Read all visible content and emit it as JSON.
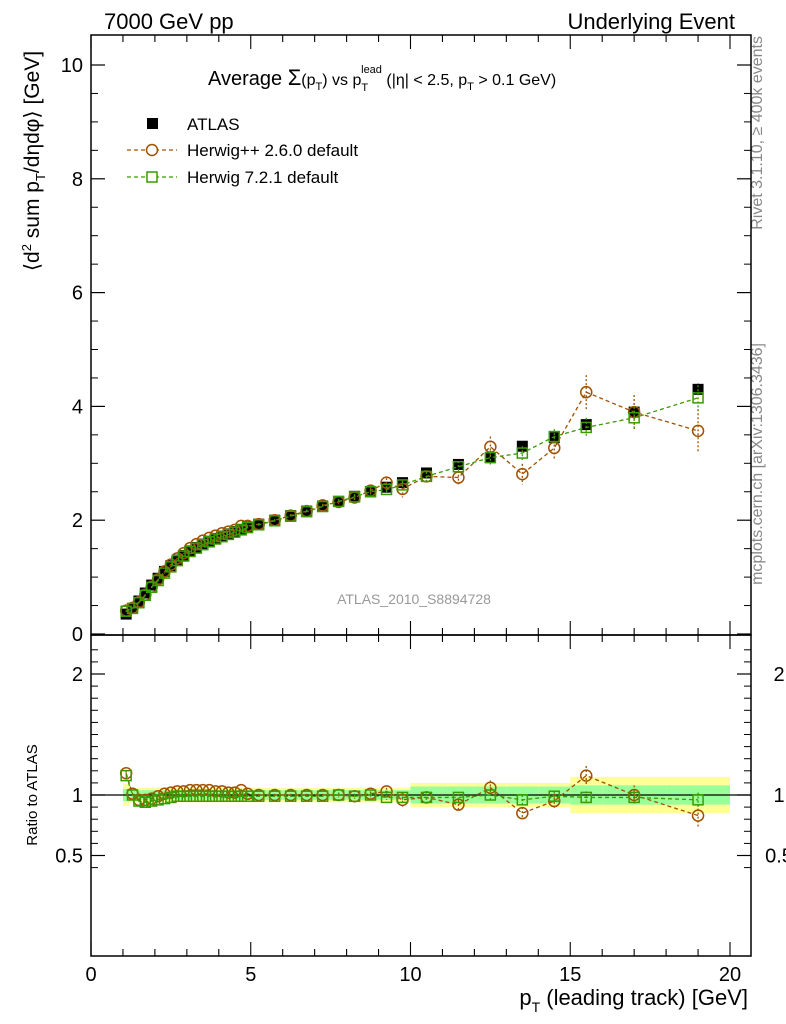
{
  "header": {
    "left": "7000 GeV pp",
    "right": "Underlying Event"
  },
  "side_labels": {
    "rivet": "Rivet 3.1.10, ≥ 400k events",
    "mcplots": "mcplots.cern.ch [arXiv:1306.3436]"
  },
  "chart_data": [
    {
      "type": "scatter",
      "panel": "main",
      "title": {
        "prefix": "Average ",
        "sigma": "Σ",
        "sigma_arg_open": "(p",
        "sigma_arg_sub": "T",
        "sigma_arg_close": ")",
        "vs": " vs p",
        "vs_sub": "T",
        "vs_sup": "lead",
        "cuts_1": " (|η| < 2.5, p",
        "cuts_sub": "T",
        "cuts_2": " > 0.1 GeV)"
      },
      "ylabel": {
        "p1": "⟨d",
        "sup2": "2",
        "p2": " sum p",
        "subT": "T",
        "p3": "/dηdφ⟩ [GeV]"
      },
      "watermark": "ATLAS_2010_S8894728",
      "xlim": [
        0,
        20
      ],
      "ylim": [
        0,
        10.5
      ],
      "yticks": [
        0,
        2,
        4,
        6,
        8,
        10
      ],
      "legend_position": "top-left",
      "series": [
        {
          "name": "ATLAS",
          "color": "#000000",
          "marker": "filled-square",
          "x": [
            1.1,
            1.3,
            1.5,
            1.7,
            1.9,
            2.1,
            2.3,
            2.5,
            2.7,
            2.9,
            3.1,
            3.3,
            3.5,
            3.7,
            3.9,
            4.1,
            4.3,
            4.5,
            4.7,
            4.9,
            5.25,
            5.75,
            6.25,
            6.75,
            7.25,
            7.75,
            8.25,
            8.75,
            9.25,
            9.75,
            10.5,
            11.5,
            12.5,
            13.5,
            14.5,
            15.5,
            17,
            19
          ],
          "y": [
            0.35,
            0.45,
            0.58,
            0.72,
            0.86,
            0.98,
            1.1,
            1.2,
            1.3,
            1.38,
            1.46,
            1.52,
            1.58,
            1.63,
            1.68,
            1.72,
            1.76,
            1.8,
            1.84,
            1.88,
            1.93,
            2.0,
            2.08,
            2.16,
            2.25,
            2.33,
            2.42,
            2.5,
            2.58,
            2.66,
            2.83,
            2.98,
            3.1,
            3.3,
            3.45,
            3.68,
            3.9,
            4.3
          ],
          "yerr": [
            0.01,
            0.01,
            0.01,
            0.01,
            0.01,
            0.01,
            0.01,
            0.01,
            0.01,
            0.01,
            0.01,
            0.01,
            0.01,
            0.01,
            0.01,
            0.01,
            0.01,
            0.01,
            0.01,
            0.01,
            0.01,
            0.01,
            0.01,
            0.01,
            0.01,
            0.01,
            0.01,
            0.02,
            0.02,
            0.03,
            0.03,
            0.04,
            0.05,
            0.06,
            0.07,
            0.08,
            0.08,
            0.1
          ]
        },
        {
          "name": "Herwig++ 2.6.0 default",
          "color": "#a25000",
          "marker": "open-circle",
          "x": [
            1.1,
            1.3,
            1.5,
            1.7,
            1.9,
            2.1,
            2.3,
            2.5,
            2.7,
            2.9,
            3.1,
            3.3,
            3.5,
            3.7,
            3.9,
            4.1,
            4.3,
            4.5,
            4.7,
            4.9,
            5.25,
            5.75,
            6.25,
            6.75,
            7.25,
            7.75,
            8.25,
            8.75,
            9.25,
            9.75,
            10.5,
            11.5,
            12.5,
            13.5,
            14.5,
            15.5,
            17,
            19
          ],
          "y": [
            0.41,
            0.46,
            0.56,
            0.69,
            0.83,
            0.96,
            1.1,
            1.22,
            1.33,
            1.42,
            1.51,
            1.58,
            1.64,
            1.69,
            1.73,
            1.77,
            1.8,
            1.83,
            1.9,
            1.9,
            1.93,
            2.0,
            2.08,
            2.16,
            2.26,
            2.32,
            2.4,
            2.52,
            2.66,
            2.55,
            2.77,
            2.75,
            3.29,
            2.81,
            3.27,
            4.25,
            3.9,
            3.57
          ],
          "yerr": [
            0.01,
            0.01,
            0.01,
            0.01,
            0.01,
            0.01,
            0.01,
            0.01,
            0.01,
            0.01,
            0.01,
            0.01,
            0.01,
            0.01,
            0.01,
            0.01,
            0.01,
            0.01,
            0.01,
            0.02,
            0.02,
            0.02,
            0.03,
            0.03,
            0.03,
            0.04,
            0.05,
            0.06,
            0.08,
            0.15,
            0.08,
            0.12,
            0.18,
            0.18,
            0.2,
            0.3,
            0.3,
            0.38
          ]
        },
        {
          "name": "Herwig 7.2.1 default",
          "color": "#3a9b00",
          "marker": "open-square",
          "x": [
            1.1,
            1.3,
            1.5,
            1.7,
            1.9,
            2.1,
            2.3,
            2.5,
            2.7,
            2.9,
            3.1,
            3.3,
            3.5,
            3.7,
            3.9,
            4.1,
            4.3,
            4.5,
            4.7,
            4.9,
            5.25,
            5.75,
            6.25,
            6.75,
            7.25,
            7.75,
            8.25,
            8.75,
            9.25,
            9.75,
            10.5,
            11.5,
            12.5,
            13.5,
            14.5,
            15.5,
            17,
            19
          ],
          "y": [
            0.4,
            0.45,
            0.55,
            0.68,
            0.82,
            0.94,
            1.07,
            1.18,
            1.29,
            1.37,
            1.45,
            1.51,
            1.57,
            1.62,
            1.67,
            1.71,
            1.75,
            1.79,
            1.83,
            1.87,
            1.92,
            1.99,
            2.07,
            2.15,
            2.24,
            2.33,
            2.41,
            2.5,
            2.54,
            2.62,
            2.77,
            2.94,
            3.1,
            3.18,
            3.47,
            3.63,
            3.8,
            4.15
          ],
          "yerr": [
            0.01,
            0.01,
            0.01,
            0.01,
            0.01,
            0.01,
            0.01,
            0.01,
            0.01,
            0.01,
            0.01,
            0.01,
            0.01,
            0.01,
            0.01,
            0.01,
            0.01,
            0.01,
            0.01,
            0.02,
            0.02,
            0.02,
            0.03,
            0.03,
            0.03,
            0.04,
            0.05,
            0.05,
            0.06,
            0.07,
            0.08,
            0.1,
            0.12,
            0.12,
            0.13,
            0.17,
            0.2,
            0.22
          ]
        }
      ]
    },
    {
      "type": "scatter",
      "panel": "ratio",
      "ylabel": "Ratio to ATLAS",
      "xlabel": {
        "p1": "p",
        "sub": "T",
        "p2": " (leading track) [GeV]"
      },
      "xlim": [
        0,
        20
      ],
      "ylim": [
        0.35,
        2.3
      ],
      "yticks": [
        0.5,
        1,
        2
      ],
      "xticks": [
        0,
        5,
        10,
        15,
        20
      ],
      "reference_line": 1,
      "bands": {
        "edges": [
          1.0,
          1.2,
          1.4,
          1.6,
          1.8,
          2.0,
          2.2,
          2.4,
          2.6,
          2.8,
          3.0,
          3.2,
          3.4,
          3.6,
          3.8,
          4.0,
          4.2,
          4.4,
          4.6,
          4.8,
          5.0,
          5.5,
          6.0,
          6.5,
          7.0,
          7.5,
          8.0,
          8.5,
          9.0,
          9.5,
          10.0,
          11.0,
          12.0,
          13.0,
          14.0,
          15.0,
          16.0,
          18.0,
          20.0
        ],
        "stat_half_width": [
          0.05,
          0.04,
          0.04,
          0.04,
          0.04,
          0.04,
          0.04,
          0.04,
          0.04,
          0.04,
          0.04,
          0.04,
          0.04,
          0.04,
          0.04,
          0.04,
          0.04,
          0.04,
          0.04,
          0.04,
          0.04,
          0.04,
          0.04,
          0.04,
          0.04,
          0.04,
          0.04,
          0.04,
          0.04,
          0.04,
          0.07,
          0.07,
          0.07,
          0.07,
          0.07,
          0.08,
          0.08,
          0.08
        ],
        "total_half_width": [
          0.09,
          0.06,
          0.06,
          0.06,
          0.06,
          0.06,
          0.06,
          0.06,
          0.06,
          0.06,
          0.06,
          0.06,
          0.06,
          0.06,
          0.06,
          0.06,
          0.06,
          0.06,
          0.06,
          0.06,
          0.06,
          0.06,
          0.06,
          0.06,
          0.06,
          0.06,
          0.06,
          0.06,
          0.06,
          0.06,
          0.1,
          0.1,
          0.1,
          0.1,
          0.1,
          0.15,
          0.15,
          0.15
        ],
        "stat_color": "#99ff99",
        "total_color": "#ffff99"
      },
      "series": [
        {
          "name": "Herwig++ 2.6.0 default",
          "color": "#a25000",
          "marker": "open-circle",
          "x": [
            1.1,
            1.3,
            1.5,
            1.7,
            1.9,
            2.1,
            2.3,
            2.5,
            2.7,
            2.9,
            3.1,
            3.3,
            3.5,
            3.7,
            3.9,
            4.1,
            4.3,
            4.5,
            4.7,
            4.9,
            5.25,
            5.75,
            6.25,
            6.75,
            7.25,
            7.75,
            8.25,
            8.75,
            9.25,
            9.75,
            10.5,
            11.5,
            12.5,
            13.5,
            14.5,
            15.5,
            17,
            19
          ],
          "y": [
            1.18,
            1.01,
            0.96,
            0.96,
            0.97,
            0.99,
            1.01,
            1.02,
            1.03,
            1.03,
            1.04,
            1.04,
            1.04,
            1.04,
            1.03,
            1.03,
            1.02,
            1.02,
            1.04,
            1.01,
            1.0,
            1.0,
            1.0,
            1.0,
            1.0,
            1.0,
            0.99,
            1.01,
            1.03,
            0.96,
            0.98,
            0.92,
            1.06,
            0.85,
            0.95,
            1.16,
            1.0,
            0.83
          ],
          "yerr": [
            0.02,
            0.01,
            0.01,
            0.01,
            0.01,
            0.01,
            0.01,
            0.01,
            0.01,
            0.01,
            0.01,
            0.01,
            0.01,
            0.01,
            0.01,
            0.01,
            0.01,
            0.01,
            0.01,
            0.01,
            0.01,
            0.01,
            0.01,
            0.01,
            0.01,
            0.02,
            0.02,
            0.02,
            0.03,
            0.06,
            0.03,
            0.04,
            0.06,
            0.05,
            0.06,
            0.08,
            0.08,
            0.09
          ]
        },
        {
          "name": "Herwig 7.2.1 default",
          "color": "#3a9b00",
          "marker": "open-square",
          "x": [
            1.1,
            1.3,
            1.5,
            1.7,
            1.9,
            2.1,
            2.3,
            2.5,
            2.7,
            2.9,
            3.1,
            3.3,
            3.5,
            3.7,
            3.9,
            4.1,
            4.3,
            4.5,
            4.7,
            4.9,
            5.25,
            5.75,
            6.25,
            6.75,
            7.25,
            7.75,
            8.25,
            8.75,
            9.25,
            9.75,
            10.5,
            11.5,
            12.5,
            13.5,
            14.5,
            15.5,
            17,
            19
          ],
          "y": [
            1.16,
            1.0,
            0.95,
            0.94,
            0.95,
            0.96,
            0.97,
            0.98,
            0.99,
            0.99,
            0.99,
            0.99,
            0.99,
            0.99,
            0.99,
            0.99,
            0.99,
            0.99,
            0.99,
            0.99,
            0.99,
            0.99,
            0.99,
            0.99,
            0.99,
            1.0,
            0.99,
            1.0,
            0.98,
            0.98,
            0.98,
            0.98,
            1.0,
            0.96,
            0.99,
            0.98,
            0.98,
            0.96
          ],
          "yerr": [
            0.02,
            0.01,
            0.01,
            0.01,
            0.01,
            0.01,
            0.01,
            0.01,
            0.01,
            0.01,
            0.01,
            0.01,
            0.01,
            0.01,
            0.01,
            0.01,
            0.01,
            0.01,
            0.01,
            0.01,
            0.01,
            0.01,
            0.01,
            0.01,
            0.01,
            0.02,
            0.02,
            0.02,
            0.02,
            0.03,
            0.03,
            0.03,
            0.04,
            0.04,
            0.04,
            0.05,
            0.05,
            0.06
          ]
        }
      ]
    }
  ]
}
